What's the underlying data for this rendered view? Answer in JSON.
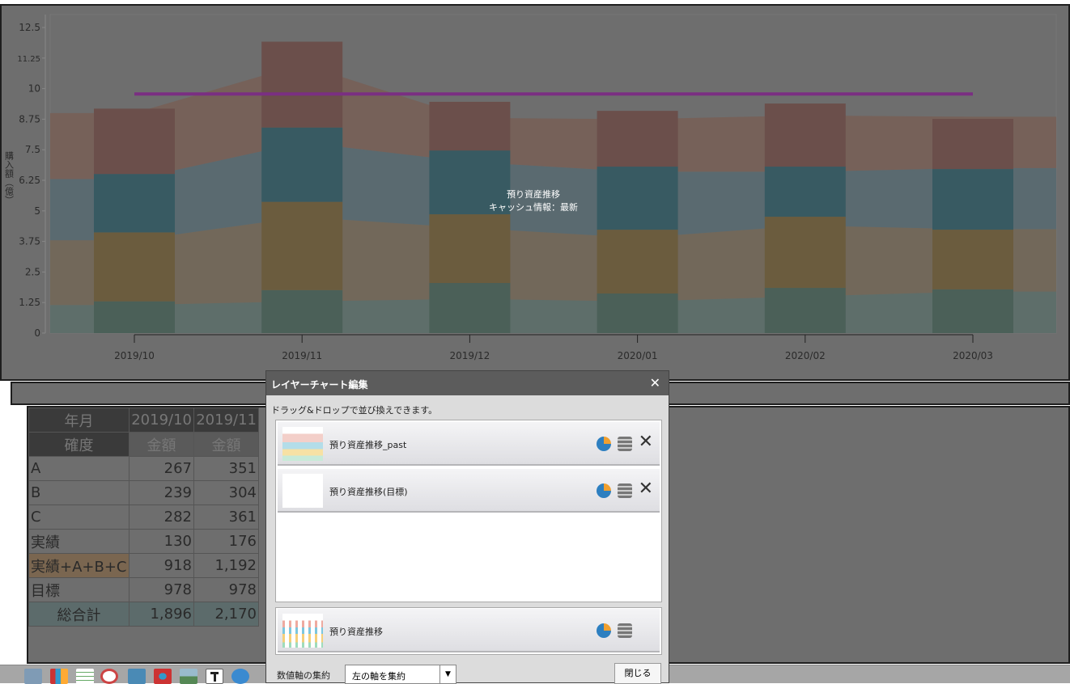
{
  "chart_data": {
    "type": "bar",
    "stacked": true,
    "categories": [
      "2019/10",
      "2019/11",
      "2019/12",
      "2020/01",
      "2020/02",
      "2020/03"
    ],
    "ylabel": "購入額（億）",
    "ylim": [
      0,
      12.5
    ],
    "yticks": [
      "0",
      "1.25",
      "2.5",
      "3.75",
      "5",
      "6.25",
      "7.5",
      "8.75",
      "10",
      "11.25",
      "12.5"
    ],
    "center_title": "預り資産推移",
    "center_subtitle": "キャッシュ情報：最新",
    "series": [
      {
        "name": "実績",
        "color": "#4b6058",
        "values": [
          1.3,
          1.76,
          2.05,
          1.62,
          1.85,
          1.79
        ]
      },
      {
        "name": "C",
        "color": "#6b5c3e",
        "values": [
          2.82,
          3.61,
          2.81,
          2.61,
          2.91,
          2.44
        ]
      },
      {
        "name": "B",
        "color": "#385a62",
        "values": [
          2.39,
          3.04,
          2.61,
          2.58,
          2.05,
          2.48
        ]
      },
      {
        "name": "A",
        "color": "#6b4f4b",
        "values": [
          2.67,
          3.51,
          1.99,
          2.28,
          2.58,
          2.05
        ]
      }
    ],
    "past_area": {
      "name": "預り資産推移_past",
      "layers": [
        {
          "color": "#5e6e6a",
          "values": [
            1.15,
            1.3,
            1.4,
            1.3,
            1.5,
            1.7
          ]
        },
        {
          "color": "#72685a",
          "values": [
            3.8,
            4.75,
            4.3,
            3.9,
            4.4,
            4.25
          ]
        },
        {
          "color": "#5a6a70",
          "values": [
            6.3,
            7.8,
            7.0,
            6.6,
            6.6,
            6.75
          ]
        },
        {
          "color": "#766159",
          "values": [
            9.0,
            11.0,
            8.8,
            8.75,
            8.9,
            8.85
          ]
        }
      ]
    },
    "target": {
      "name": "預り資産推移（目標）",
      "value": 9.78,
      "color": "#7a2f82"
    }
  },
  "table": {
    "header1": [
      "年月",
      "2019/10",
      "2019/11"
    ],
    "header2": [
      "確度",
      "金額",
      "金額"
    ],
    "rows": [
      [
        "A",
        "267",
        "351"
      ],
      [
        "B",
        "239",
        "304"
      ],
      [
        "C",
        "282",
        "361"
      ],
      [
        "実績",
        "130",
        "176"
      ],
      [
        "実績+A+B+C",
        "918",
        "1,192"
      ],
      [
        "目標",
        "978",
        "978"
      ],
      [
        "総合計",
        "1,896",
        "2,170"
      ]
    ]
  },
  "dialog": {
    "title": "レイヤーチャート編集",
    "close": "✕",
    "hint": "ドラッグ&ドロップで並び換えできます。",
    "layers": [
      {
        "label": "預り資産推移_past"
      },
      {
        "label": "預り資産推移(目標)"
      }
    ],
    "base": {
      "label": "預り資産推移"
    },
    "axis_label": "数値軸の集約",
    "axis_value": "左の軸を集約",
    "close_button": "閉じる"
  }
}
